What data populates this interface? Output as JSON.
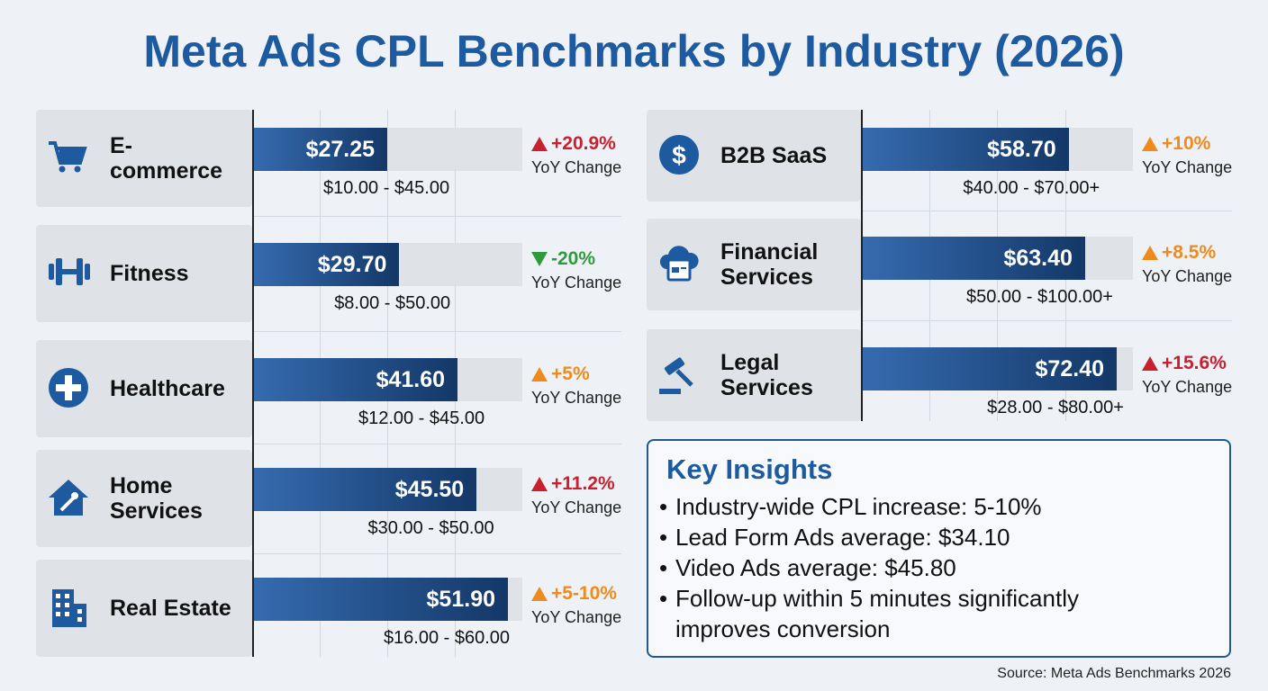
{
  "title": "Meta Ads CPL Benchmarks by Industry (2026)",
  "chart_data": [
    {
      "type": "bar",
      "orientation": "horizontal",
      "categories": [
        "E-commerce",
        "Fitness",
        "Healthcare",
        "Home Services",
        "Real Estate"
      ],
      "values": [
        27.25,
        29.7,
        41.6,
        45.5,
        51.9
      ],
      "value_labels": [
        "$27.25",
        "$29.70",
        "$41.60",
        "$45.50",
        "$51.90"
      ],
      "color": "#1f5aa6",
      "ranges": [
        "$10.00 - $45.00",
        "$8.00 - $50.00",
        "$12.00 - $45.00",
        "$30.00 - $50.00",
        "$16.00 - $60.00"
      ],
      "changes": [
        "+20.9%",
        "-20%",
        "+5%",
        "+11.2%",
        "+5-10%"
      ],
      "change_directions": [
        "up",
        "down",
        "up",
        "up",
        "up"
      ],
      "change_colors": [
        "#c8202f",
        "#2f9a3a",
        "#ef8a1c",
        "#c8202f",
        "#ef8a1c"
      ],
      "change_label": "YoY Change"
    },
    {
      "type": "bar",
      "orientation": "horizontal",
      "categories": [
        "B2B SaaS",
        "Financial Services",
        "Legal Services"
      ],
      "values": [
        58.7,
        63.4,
        72.4
      ],
      "value_labels": [
        "$58.70",
        "$63.40",
        "$72.40"
      ],
      "color": "#1f5aa6",
      "ranges": [
        "$40.00 - $70.00+",
        "$50.00 - $100.00+",
        "$28.00 - $80.00+"
      ],
      "changes": [
        "+10%",
        "+8.5%",
        "+15.6%"
      ],
      "change_directions": [
        "up",
        "up",
        "up"
      ],
      "change_colors": [
        "#ef8a1c",
        "#ef8a1c",
        "#c8202f"
      ],
      "change_label": "YoY Change"
    }
  ],
  "key_insights": {
    "title": "Key Insights",
    "items": [
      "Industry-wide CPL increase: 5-10%",
      "Lead Form Ads average: $34.10",
      "Video Ads average: $45.80",
      "Follow-up within 5 minutes significantly improves conversion"
    ]
  },
  "source": "Source: Meta Ads Benchmarks 2026"
}
